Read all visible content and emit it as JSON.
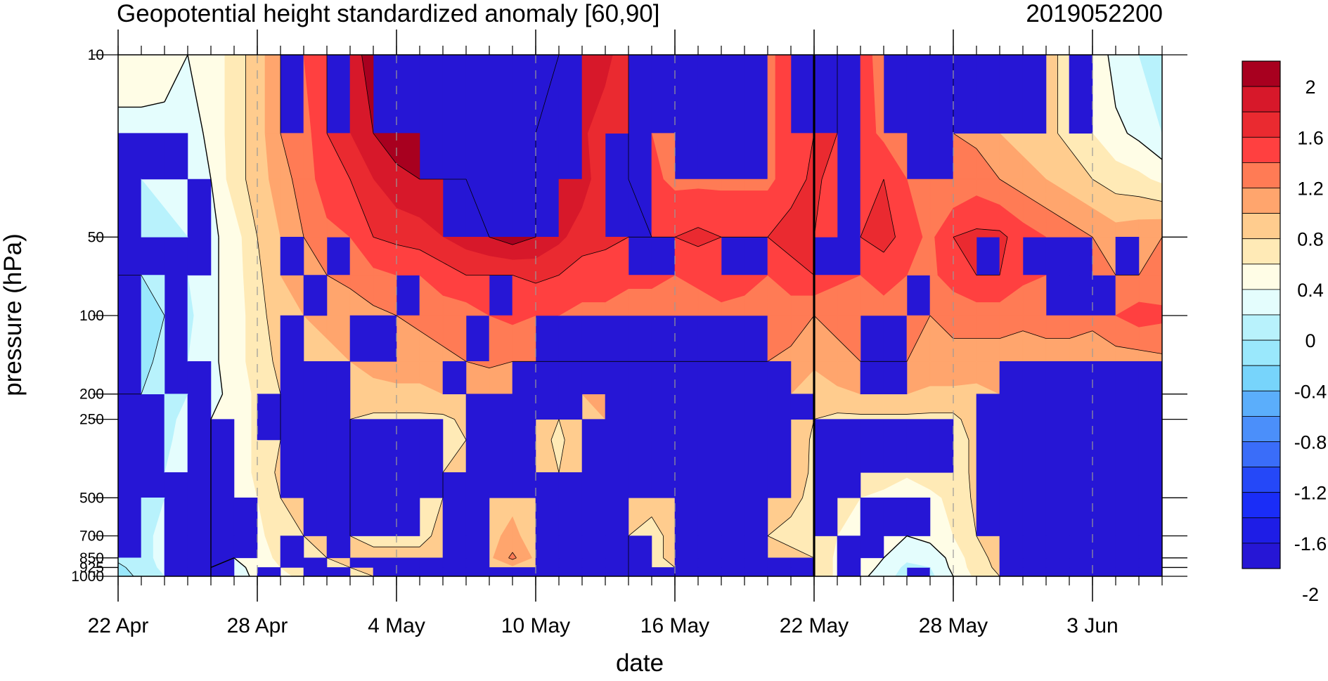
{
  "header": {
    "title": "Geopotential height standardized anomaly [60,90]",
    "date_stamp": "2019052200"
  },
  "chart_data": {
    "type": "heatmap",
    "title": "Geopotential height standardized anomaly [60,90]",
    "xlabel": "date",
    "ylabel": "pressure (hPa)",
    "y_scale": "log",
    "y_reversed": true,
    "x_ticks": [
      "22 Apr",
      "28 Apr",
      "4 May",
      "10 May",
      "16 May",
      "22 May",
      "28 May",
      "3 Jun"
    ],
    "x_dates": [
      "2019-04-22",
      "2019-04-23",
      "2019-04-24",
      "2019-04-25",
      "2019-04-26",
      "2019-04-27",
      "2019-04-28",
      "2019-04-29",
      "2019-04-30",
      "2019-05-01",
      "2019-05-02",
      "2019-05-03",
      "2019-05-04",
      "2019-05-05",
      "2019-05-06",
      "2019-05-07",
      "2019-05-08",
      "2019-05-09",
      "2019-05-10",
      "2019-05-11",
      "2019-05-12",
      "2019-05-13",
      "2019-05-14",
      "2019-05-15",
      "2019-05-16",
      "2019-05-17",
      "2019-05-18",
      "2019-05-19",
      "2019-05-20",
      "2019-05-21",
      "2019-05-22",
      "2019-05-23",
      "2019-05-24",
      "2019-05-25",
      "2019-05-26",
      "2019-05-27",
      "2019-05-28",
      "2019-05-29",
      "2019-05-30",
      "2019-05-31",
      "2019-06-01",
      "2019-06-02",
      "2019-06-03",
      "2019-06-04",
      "2019-06-05",
      "2019-06-06"
    ],
    "xlim": [
      "2019-04-22",
      "2019-06-06"
    ],
    "y_tick_labels": [
      "10",
      "50",
      "100",
      "200",
      "250",
      "500",
      "700",
      "850",
      "925",
      "1000"
    ],
    "pressure_levels": [
      10,
      20,
      30,
      50,
      70,
      100,
      150,
      200,
      250,
      300,
      400,
      500,
      700,
      850,
      925,
      1000
    ],
    "ylim": [
      1000,
      10
    ],
    "values": [
      [
        0.2,
        0.2,
        0.15,
        0.0,
        0.05,
        0.3,
        0.5,
        0.8,
        1.0,
        1.2,
        1.4,
        1.8,
        2.0,
        2.0,
        1.9,
        1.8,
        1.6,
        1.6,
        1.6,
        1.6,
        1.6,
        1.5,
        1.2,
        1.0,
        0.95,
        0.95,
        0.95,
        0.95,
        0.95,
        1.1,
        1.2,
        1.2,
        1.1,
        0.9,
        0.8,
        0.8,
        0.8,
        0.7,
        0.6,
        0.55,
        0.45,
        0.35,
        0.2,
        -0.1,
        -0.2,
        -0.35
      ],
      [
        -0.1,
        -0.1,
        -0.1,
        -0.1,
        0.05,
        0.3,
        0.5,
        0.8,
        0.9,
        1.2,
        1.4,
        1.6,
        1.7,
        1.7,
        1.7,
        1.7,
        1.6,
        1.6,
        1.6,
        1.5,
        1.45,
        1.25,
        1.2,
        1.0,
        0.95,
        0.95,
        0.95,
        0.95,
        0.95,
        1.1,
        1.2,
        1.2,
        1.1,
        0.95,
        0.8,
        0.8,
        0.8,
        0.75,
        0.6,
        0.5,
        0.45,
        0.35,
        0.2,
        0.05,
        -0.05,
        -0.2
      ],
      [
        -0.2,
        -0.2,
        -0.15,
        -0.1,
        0.0,
        0.3,
        0.5,
        0.7,
        0.9,
        1.1,
        1.2,
        1.4,
        1.55,
        1.6,
        1.6,
        1.6,
        1.6,
        1.7,
        1.6,
        1.5,
        1.5,
        1.25,
        1.2,
        1.05,
        0.95,
        0.95,
        0.95,
        0.95,
        0.95,
        1.1,
        1.25,
        1.1,
        1.0,
        1.2,
        1.0,
        0.85,
        0.8,
        0.9,
        0.8,
        0.7,
        0.6,
        0.5,
        0.4,
        0.3,
        0.25,
        0.15
      ],
      [
        -0.35,
        -0.3,
        -0.25,
        -0.2,
        -0.05,
        0.1,
        0.4,
        0.6,
        0.8,
        0.95,
        1.0,
        1.2,
        1.25,
        1.3,
        1.4,
        1.5,
        1.6,
        1.7,
        1.6,
        1.45,
        1.3,
        1.25,
        1.2,
        1.2,
        1.2,
        1.25,
        1.2,
        1.2,
        1.2,
        1.3,
        1.2,
        1.1,
        1.2,
        1.3,
        1.1,
        0.95,
        1.2,
        1.25,
        1.25,
        1.1,
        1.0,
        0.9,
        0.8,
        0.7,
        0.75,
        0.8
      ],
      [
        -0.4,
        -0.4,
        -0.3,
        -0.2,
        -0.05,
        0.1,
        0.35,
        0.6,
        0.75,
        0.8,
        0.85,
        0.95,
        1.0,
        1.0,
        1.1,
        1.2,
        1.2,
        1.2,
        1.25,
        1.2,
        1.1,
        1.1,
        1.05,
        1.05,
        1.0,
        1.05,
        1.1,
        1.05,
        1.0,
        1.1,
        1.2,
        1.05,
        1.0,
        1.05,
        1.0,
        0.95,
        1.1,
        1.2,
        1.2,
        1.05,
        1.0,
        1.0,
        0.9,
        0.8,
        0.8,
        0.85
      ],
      [
        -0.5,
        -0.5,
        -0.4,
        -0.25,
        -0.05,
        0.1,
        0.3,
        0.55,
        0.6,
        0.65,
        0.7,
        0.75,
        0.8,
        0.85,
        0.9,
        0.9,
        1.0,
        1.05,
        1.0,
        1.0,
        0.95,
        0.95,
        0.9,
        0.9,
        0.9,
        0.9,
        0.95,
        0.95,
        0.9,
        0.9,
        0.8,
        0.85,
        0.9,
        0.95,
        0.85,
        0.8,
        0.85,
        0.9,
        0.9,
        0.85,
        0.9,
        0.9,
        0.85,
        1.0,
        1.1,
        1.05
      ],
      [
        -0.45,
        -0.45,
        -0.35,
        -0.2,
        -0.05,
        0.1,
        0.3,
        0.45,
        0.5,
        0.55,
        0.6,
        0.65,
        0.7,
        0.7,
        0.75,
        0.8,
        0.85,
        0.8,
        0.8,
        0.8,
        0.8,
        0.8,
        0.8,
        0.8,
        0.8,
        0.8,
        0.8,
        0.8,
        0.8,
        0.75,
        0.65,
        0.75,
        0.8,
        0.8,
        0.8,
        0.75,
        0.75,
        0.7,
        0.7,
        0.7,
        0.7,
        0.7,
        0.7,
        0.7,
        0.7,
        0.75
      ],
      [
        -0.4,
        -0.4,
        -0.3,
        -0.2,
        -0.05,
        0.05,
        0.25,
        0.4,
        0.45,
        0.45,
        0.5,
        0.55,
        0.55,
        0.55,
        0.6,
        0.6,
        0.6,
        0.6,
        0.6,
        0.6,
        0.6,
        0.65,
        0.65,
        0.65,
        0.6,
        0.6,
        0.6,
        0.6,
        0.6,
        0.6,
        0.45,
        0.55,
        0.6,
        0.6,
        0.6,
        0.55,
        0.55,
        0.55,
        0.6,
        0.6,
        0.6,
        0.6,
        0.6,
        0.6,
        0.6,
        0.6
      ],
      [
        -0.4,
        -0.35,
        -0.25,
        -0.15,
        0.0,
        0.05,
        0.25,
        0.4,
        0.45,
        0.45,
        0.4,
        0.35,
        0.35,
        0.35,
        0.35,
        0.45,
        0.5,
        0.55,
        0.6,
        0.4,
        0.55,
        0.6,
        0.6,
        0.6,
        0.6,
        0.6,
        0.6,
        0.6,
        0.6,
        0.6,
        0.4,
        0.35,
        0.35,
        0.35,
        0.35,
        0.35,
        0.35,
        0.5,
        0.55,
        0.55,
        0.55,
        0.55,
        0.55,
        0.55,
        0.55,
        0.6
      ],
      [
        -0.35,
        -0.35,
        -0.25,
        -0.1,
        0.0,
        0.05,
        0.25,
        0.4,
        0.45,
        0.45,
        0.4,
        0.35,
        0.35,
        0.35,
        0.35,
        0.4,
        0.45,
        0.5,
        0.5,
        0.35,
        0.55,
        0.6,
        0.6,
        0.6,
        0.6,
        0.6,
        0.6,
        0.6,
        0.6,
        0.6,
        0.35,
        0.3,
        0.3,
        0.3,
        0.3,
        0.3,
        0.3,
        0.45,
        0.55,
        0.55,
        0.55,
        0.55,
        0.55,
        0.55,
        0.55,
        0.6
      ],
      [
        -0.35,
        -0.3,
        -0.2,
        -0.05,
        0.0,
        0.05,
        0.25,
        0.45,
        0.45,
        0.45,
        0.4,
        0.35,
        0.35,
        0.35,
        0.4,
        0.45,
        0.5,
        0.5,
        0.45,
        0.4,
        0.45,
        0.45,
        0.5,
        0.5,
        0.55,
        0.6,
        0.6,
        0.55,
        0.5,
        0.55,
        0.35,
        0.3,
        0.3,
        0.3,
        0.25,
        0.3,
        0.3,
        0.45,
        0.55,
        0.55,
        0.55,
        0.55,
        0.55,
        0.55,
        0.5,
        0.45
      ],
      [
        -0.3,
        -0.3,
        -0.2,
        -0.05,
        0.0,
        0.05,
        0.2,
        0.4,
        0.45,
        0.45,
        0.4,
        0.35,
        0.35,
        0.35,
        0.4,
        0.45,
        0.5,
        0.55,
        0.5,
        0.4,
        0.45,
        0.45,
        0.45,
        0.45,
        0.45,
        0.5,
        0.5,
        0.5,
        0.45,
        0.45,
        0.35,
        0.25,
        0.2,
        0.15,
        0.0,
        0.15,
        0.25,
        0.45,
        0.55,
        0.55,
        0.55,
        0.55,
        0.55,
        0.55,
        0.5,
        0.45
      ],
      [
        -0.3,
        -0.25,
        -0.15,
        -0.05,
        0.0,
        0.05,
        0.15,
        0.3,
        0.4,
        0.45,
        0.4,
        0.35,
        0.35,
        0.35,
        0.45,
        0.5,
        0.55,
        0.65,
        0.5,
        0.45,
        0.45,
        0.45,
        0.4,
        0.35,
        0.45,
        0.45,
        0.45,
        0.45,
        0.4,
        0.35,
        0.35,
        0.2,
        0.1,
        0.05,
        0.0,
        0.05,
        0.2,
        0.4,
        0.5,
        0.55,
        0.55,
        0.55,
        0.55,
        0.55,
        0.5,
        0.45
      ],
      [
        -0.35,
        -0.25,
        -0.15,
        -0.05,
        0.0,
        0.0,
        0.1,
        0.25,
        0.35,
        0.4,
        0.45,
        0.45,
        0.45,
        0.45,
        0.45,
        0.5,
        0.55,
        0.85,
        0.55,
        0.5,
        0.45,
        0.45,
        0.4,
        0.35,
        0.45,
        0.45,
        0.45,
        0.45,
        0.45,
        0.45,
        0.4,
        0.15,
        0.1,
        0.0,
        -0.15,
        -0.1,
        0.05,
        0.35,
        0.45,
        0.45,
        0.45,
        0.45,
        0.45,
        0.45,
        0.45,
        0.45
      ],
      [
        -0.45,
        -0.3,
        -0.15,
        -0.05,
        0.0,
        -0.05,
        0.05,
        0.2,
        0.3,
        0.35,
        0.4,
        0.45,
        0.45,
        0.45,
        0.45,
        0.45,
        0.5,
        0.55,
        0.5,
        0.45,
        0.45,
        0.45,
        0.4,
        0.35,
        0.4,
        0.45,
        0.45,
        0.45,
        0.45,
        0.45,
        0.4,
        0.15,
        0.1,
        -0.05,
        -0.25,
        -0.2,
        0.05,
        0.3,
        0.45,
        0.45,
        0.45,
        0.45,
        0.45,
        0.45,
        0.45,
        0.45
      ],
      [
        -0.5,
        -0.35,
        -0.2,
        -0.05,
        0.0,
        -0.1,
        0.05,
        0.15,
        0.25,
        0.3,
        0.35,
        0.4,
        0.4,
        0.4,
        0.45,
        0.45,
        0.5,
        0.5,
        0.5,
        0.45,
        0.45,
        0.45,
        0.4,
        0.35,
        0.4,
        0.45,
        0.45,
        0.45,
        0.45,
        0.45,
        0.4,
        0.15,
        0.05,
        -0.1,
        -0.3,
        -0.25,
        0.0,
        0.25,
        0.4,
        0.45,
        0.45,
        0.45,
        0.45,
        0.45,
        0.45,
        0.45
      ]
    ],
    "contour_interval": 0.2,
    "colorbar": {
      "labels": [
        "2",
        "1.6",
        "1.2",
        "0.8",
        "0.4",
        "0",
        "-0.4",
        "-0.8",
        "-1.2",
        "-1.6",
        "-2"
      ],
      "colors": [
        "#a8001f",
        "#d7182a",
        "#ea2a30",
        "#ff4040",
        "#ff7b55",
        "#ffa56d",
        "#ffcc8e",
        "#ffeab6",
        "#fffde6",
        "#e4fdfd",
        "#b8f2fc",
        "#9ae8fc",
        "#77d4fb",
        "#5baefb",
        "#4b8ffa",
        "#3a6df9",
        "#2548f8",
        "#1a2df7",
        "#1e1de6",
        "#2616d5"
      ]
    },
    "markers": {
      "highlight_date": "2019-05-22"
    },
    "grid": "dashed vertical lines at labelled dates"
  }
}
